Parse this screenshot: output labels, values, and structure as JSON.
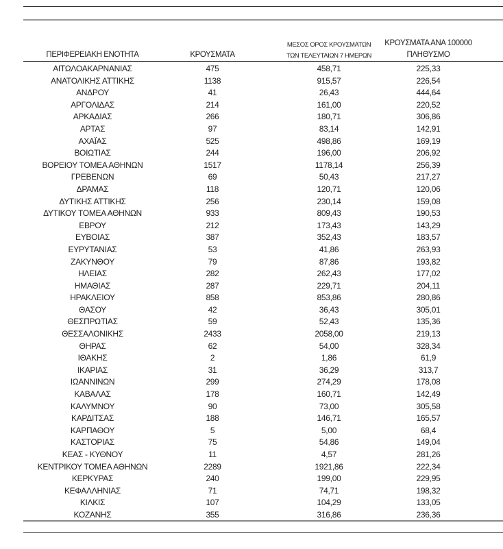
{
  "headers": {
    "region": "ΠΕΡΙΦΕΡΕΙΑΚΗ ΕΝΟΤΗΤΑ",
    "cases": "ΚΡΟΥΣΜΑΤΑ",
    "avg_line1": "ΜΕΣΟΣ ΟΡΟΣ ΚΡΟΥΣΜΑΤΩΝ",
    "avg_line2": "ΤΩΝ ΤΕΛΕΥΤΑΙΩΝ 7 ΗΜΕΡΩΝ",
    "per100k_line1": "ΚΡΟΥΣΜΑΤΑ ΑΝΑ 100000",
    "per100k_line2": "ΠΛΗΘΥΣΜΟ"
  },
  "rows": [
    [
      "ΑΙΤΩΛΟΑΚΑΡΝΑΝΙΑΣ",
      "475",
      "458,71",
      "225,33"
    ],
    [
      "ΑΝΑΤΟΛΙΚΗΣ ΑΤΤΙΚΗΣ",
      "1138",
      "915,57",
      "226,54"
    ],
    [
      "ΑΝΔΡΟΥ",
      "41",
      "26,43",
      "444,64"
    ],
    [
      "ΑΡΓΟΛΙΔΑΣ",
      "214",
      "161,00",
      "220,52"
    ],
    [
      "ΑΡΚΑΔΙΑΣ",
      "266",
      "180,71",
      "306,86"
    ],
    [
      "ΑΡΤΑΣ",
      "97",
      "83,14",
      "142,91"
    ],
    [
      "ΑΧΑΪΑΣ",
      "525",
      "498,86",
      "169,19"
    ],
    [
      "ΒΟΙΩΤΙΑΣ",
      "244",
      "196,00",
      "206,92"
    ],
    [
      "ΒΟΡΕΙΟΥ ΤΟΜΕΑ ΑΘΗΝΩΝ",
      "1517",
      "1178,14",
      "256,39"
    ],
    [
      "ΓΡΕΒΕΝΩΝ",
      "69",
      "50,43",
      "217,27"
    ],
    [
      "ΔΡΑΜΑΣ",
      "118",
      "120,71",
      "120,06"
    ],
    [
      "ΔΥΤΙΚΗΣ ΑΤΤΙΚΗΣ",
      "256",
      "230,14",
      "159,08"
    ],
    [
      "ΔΥΤΙΚΟΥ ΤΟΜΕΑ ΑΘΗΝΩΝ",
      "933",
      "809,43",
      "190,53"
    ],
    [
      "ΕΒΡΟΥ",
      "212",
      "173,43",
      "143,29"
    ],
    [
      "ΕΥΒΟΙΑΣ",
      "387",
      "352,43",
      "183,57"
    ],
    [
      "ΕΥΡΥΤΑΝΙΑΣ",
      "53",
      "41,86",
      "263,93"
    ],
    [
      "ΖΑΚΥΝΘΟΥ",
      "79",
      "87,86",
      "193,82"
    ],
    [
      "ΗΛΕΙΑΣ",
      "282",
      "262,43",
      "177,02"
    ],
    [
      "ΗΜΑΘΙΑΣ",
      "287",
      "229,71",
      "204,11"
    ],
    [
      "ΗΡΑΚΛΕΙΟΥ",
      "858",
      "853,86",
      "280,86"
    ],
    [
      "ΘΑΣΟΥ",
      "42",
      "36,43",
      "305,01"
    ],
    [
      "ΘΕΣΠΡΩΤΙΑΣ",
      "59",
      "52,43",
      "135,36"
    ],
    [
      "ΘΕΣΣΑΛΟΝΙΚΗΣ",
      "2433",
      "2058,00",
      "219,13"
    ],
    [
      "ΘΗΡΑΣ",
      "62",
      "54,00",
      "328,34"
    ],
    [
      "ΙΘΑΚΗΣ",
      "2",
      "1,86",
      "61,9"
    ],
    [
      "ΙΚΑΡΙΑΣ",
      "31",
      "36,29",
      "313,7"
    ],
    [
      "ΙΩΑΝΝΙΝΩΝ",
      "299",
      "274,29",
      "178,08"
    ],
    [
      "ΚΑΒΑΛΑΣ",
      "178",
      "160,71",
      "142,49"
    ],
    [
      "ΚΑΛΥΜΝΟΥ",
      "90",
      "73,00",
      "305,58"
    ],
    [
      "ΚΑΡΔΙΤΣΑΣ",
      "188",
      "146,71",
      "165,57"
    ],
    [
      "ΚΑΡΠΑΘΟΥ",
      "5",
      "5,00",
      "68,4"
    ],
    [
      "ΚΑΣΤΟΡΙΑΣ",
      "75",
      "54,86",
      "149,04"
    ],
    [
      "ΚΕΑΣ - ΚΥΘΝΟΥ",
      "11",
      "4,57",
      "281,26"
    ],
    [
      "ΚΕΝΤΡΙΚΟΥ ΤΟΜΕΑ ΑΘΗΝΩΝ",
      "2289",
      "1921,86",
      "222,34"
    ],
    [
      "ΚΕΡΚΥΡΑΣ",
      "240",
      "199,00",
      "229,95"
    ],
    [
      "ΚΕΦΑΛΛΗΝΙΑΣ",
      "71",
      "74,71",
      "198,32"
    ],
    [
      "ΚΙΛΚΙΣ",
      "107",
      "104,29",
      "133,05"
    ],
    [
      "ΚΟΖΑΝΗΣ",
      "355",
      "316,86",
      "236,36"
    ]
  ]
}
